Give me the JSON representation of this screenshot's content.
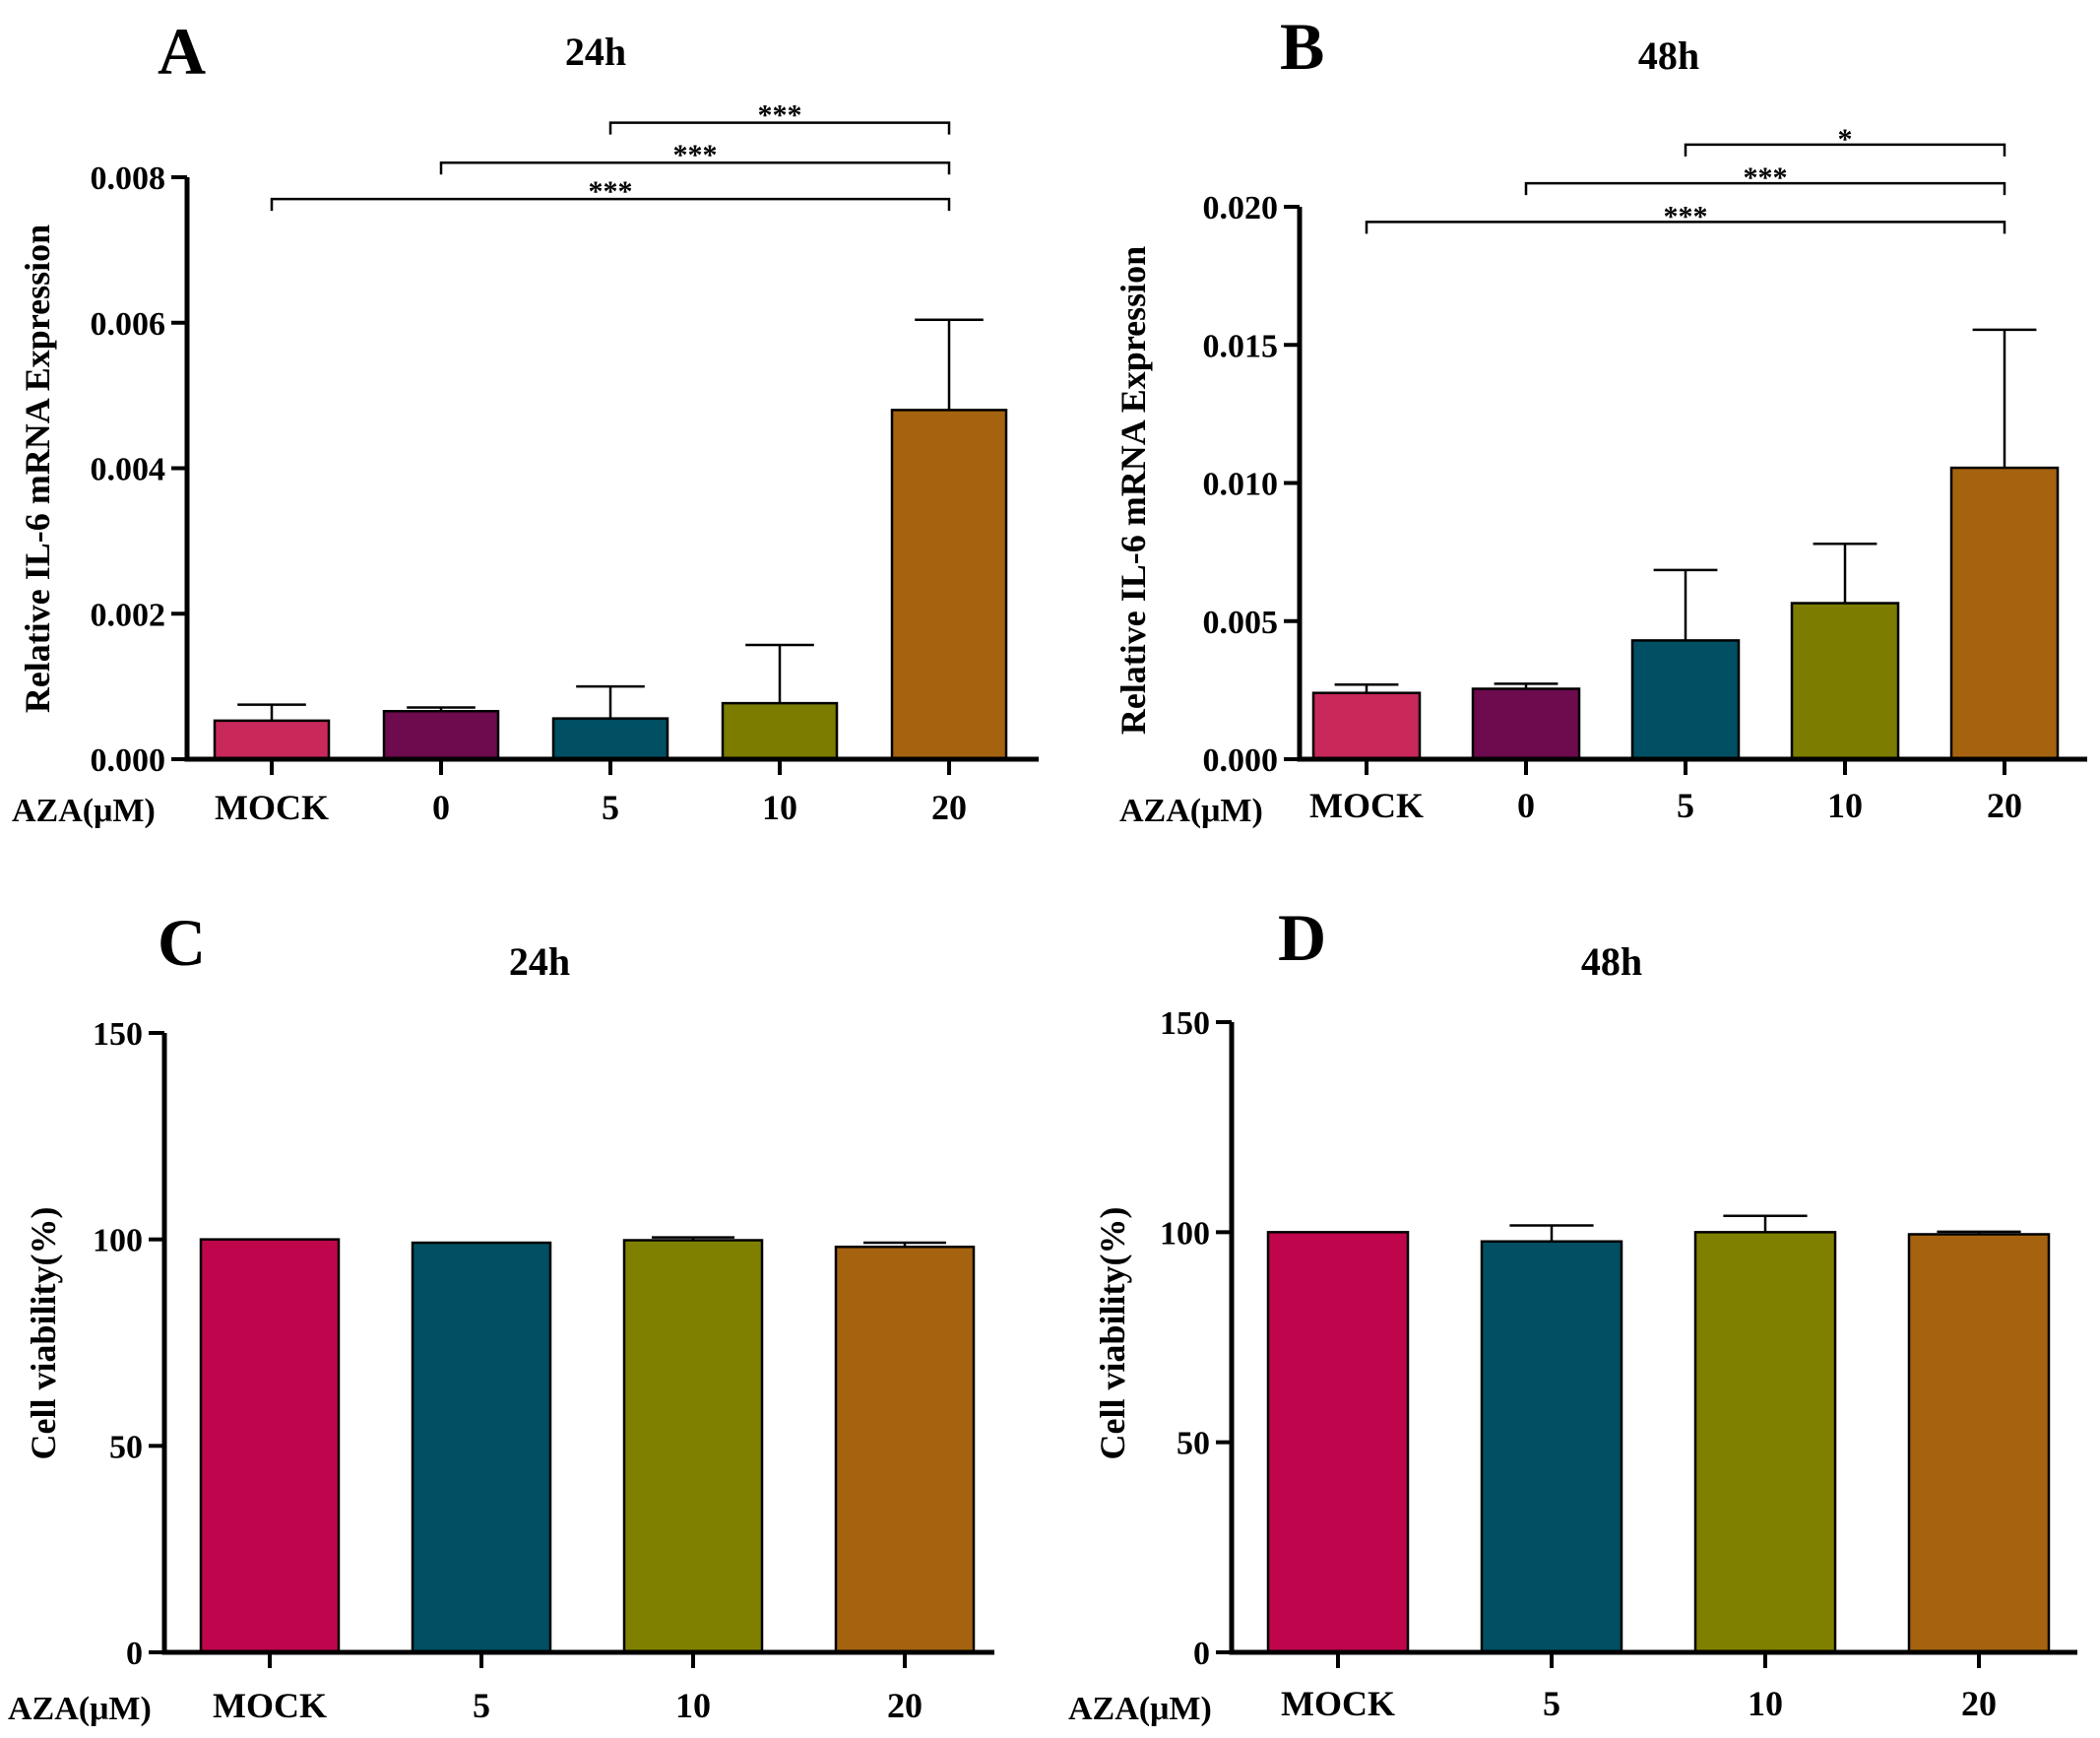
{
  "chart_data": [
    {
      "id": "A",
      "panel_label": "A",
      "type": "bar",
      "title": "24h",
      "ylabel": "Relative IL-6 mRNA Expression",
      "xlabel": "AZA(μM)",
      "categories": [
        "MOCK",
        "0",
        "5",
        "10",
        "20"
      ],
      "values": [
        0.00053,
        0.00066,
        0.00056,
        0.00077,
        0.0048
      ],
      "errors": [
        0.00022,
        5e-05,
        0.00044,
        0.0008,
        0.00124
      ],
      "colors": [
        "#c8285a",
        "#6e0a4e",
        "#004f62",
        "#7b7c00",
        "#a5630f"
      ],
      "ylim": [
        0,
        0.008
      ],
      "yticks": [
        0,
        0.002,
        0.004,
        0.006,
        0.008
      ],
      "ytick_labels": [
        "0.000",
        "0.002",
        "0.004",
        "0.006",
        "0.008"
      ],
      "significance": [
        {
          "from": 2,
          "to": 4,
          "label": "***",
          "y": 0.00875
        },
        {
          "from": 1,
          "to": 4,
          "label": "***",
          "y": 0.0082
        },
        {
          "from": 0,
          "to": 4,
          "label": "***",
          "y": 0.0077
        }
      ]
    },
    {
      "id": "B",
      "panel_label": "B",
      "type": "bar",
      "title": "48h",
      "ylabel": "Relative IL-6 mRNA Expression",
      "xlabel": "AZA(μM)",
      "categories": [
        "MOCK",
        "0",
        "5",
        "10",
        "20"
      ],
      "values": [
        0.0024,
        0.00255,
        0.0043,
        0.00565,
        0.01055
      ],
      "errors": [
        0.0003,
        0.00018,
        0.00255,
        0.00215,
        0.005
      ],
      "colors": [
        "#c8285a",
        "#6e0a4e",
        "#004f62",
        "#7b7c00",
        "#a5630f"
      ],
      "ylim": [
        0,
        0.02
      ],
      "yticks": [
        0,
        0.005,
        0.01,
        0.015,
        0.02
      ],
      "ytick_labels": [
        "0.000",
        "0.005",
        "0.010",
        "0.015",
        "0.020"
      ],
      "significance": [
        {
          "from": 2,
          "to": 4,
          "label": "*",
          "y": 0.02225
        },
        {
          "from": 1,
          "to": 4,
          "label": "***",
          "y": 0.02085
        },
        {
          "from": 0,
          "to": 4,
          "label": "***",
          "y": 0.01945
        }
      ]
    },
    {
      "id": "C",
      "panel_label": "C",
      "type": "bar",
      "title": "24h",
      "ylabel": "Cell viability(%)",
      "xlabel": "AZA(μM)",
      "categories": [
        "MOCK",
        "5",
        "10",
        "20"
      ],
      "values": [
        100,
        99.2,
        99.8,
        98.2
      ],
      "errors": [
        0,
        0,
        0.7,
        1.0
      ],
      "colors": [
        "#bf064c",
        "#004f62",
        "#808000",
        "#a5630f"
      ],
      "ylim": [
        0,
        150
      ],
      "yticks": [
        0,
        50,
        100,
        150
      ],
      "ytick_labels": [
        "0",
        "50",
        "100",
        "150"
      ],
      "significance": []
    },
    {
      "id": "D",
      "panel_label": "D",
      "type": "bar",
      "title": "48h",
      "ylabel": "Cell viability(%)",
      "xlabel": "AZA(μM)",
      "categories": [
        "MOCK",
        "5",
        "10",
        "20"
      ],
      "values": [
        100,
        97.8,
        100,
        99.5
      ],
      "errors": [
        0,
        3.8,
        3.9,
        0.6
      ],
      "colors": [
        "#bf064c",
        "#004f62",
        "#808000",
        "#a5630f"
      ],
      "ylim": [
        0,
        150
      ],
      "yticks": [
        0,
        50,
        100,
        150
      ],
      "ytick_labels": [
        "0",
        "50",
        "100",
        "150"
      ],
      "significance": []
    }
  ]
}
